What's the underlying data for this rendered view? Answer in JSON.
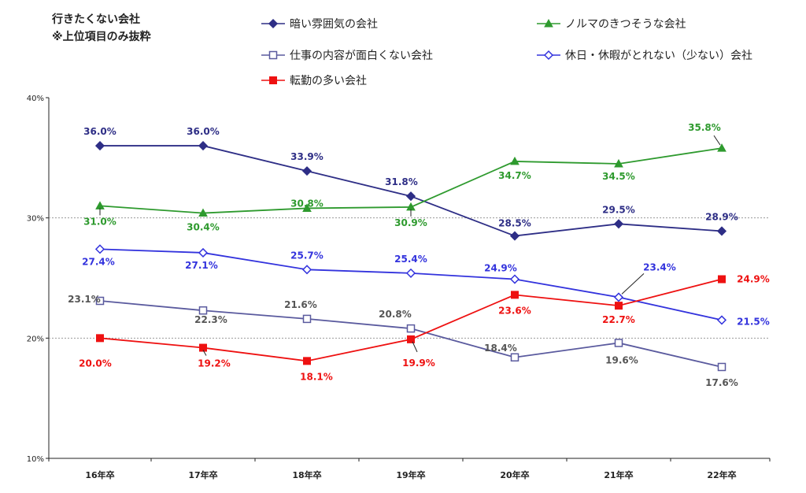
{
  "title_lines": [
    "行きたくない会社",
    "※上位項目のみ抜粋"
  ],
  "chart_data": {
    "type": "line",
    "categories": [
      "16年卒",
      "17年卒",
      "18年卒",
      "19年卒",
      "20年卒",
      "21年卒",
      "22年卒"
    ],
    "ylim": [
      10,
      40
    ],
    "yticks": [
      "10%",
      "20%",
      "30%",
      "40%"
    ],
    "grid": "horizontal dashed at 20% and 30%",
    "legend_position": "top",
    "series": [
      {
        "name": "暗い雰囲気の会社",
        "color": "#2e2e86",
        "marker": "diamond-filled",
        "values": [
          36.0,
          36.0,
          33.9,
          31.8,
          28.5,
          29.5,
          28.9
        ],
        "labels": [
          "36.0%",
          "36.0%",
          "33.9%",
          "31.8%",
          "28.5%",
          "29.5%",
          "28.9%"
        ]
      },
      {
        "name": "ノルマのきつそうな会社",
        "color": "#2e9a2e",
        "marker": "triangle-filled",
        "values": [
          31.0,
          30.4,
          30.8,
          30.9,
          34.7,
          34.5,
          35.8
        ],
        "labels": [
          "31.0%",
          "30.4%",
          "30.8%",
          "30.9%",
          "34.7%",
          "34.5%",
          "35.8%"
        ]
      },
      {
        "name": "仕事の内容が面白くない会社",
        "color": "#5a5a9e",
        "marker": "square-open",
        "values": [
          23.1,
          22.3,
          21.6,
          20.8,
          18.4,
          19.6,
          17.6
        ],
        "labels": [
          "23.1%",
          "22.3%",
          "21.6%",
          "20.8%",
          "18.4%",
          "19.6%",
          "17.6%"
        ]
      },
      {
        "name": "休日・休暇がとれない（少ない）会社",
        "color": "#3333dd",
        "marker": "diamond-open",
        "values": [
          27.4,
          27.1,
          25.7,
          25.4,
          24.9,
          23.4,
          21.5
        ],
        "labels": [
          "27.4%",
          "27.1%",
          "25.7%",
          "25.4%",
          "24.9%",
          "23.4%",
          "21.5%"
        ]
      },
      {
        "name": "転勤の多い会社",
        "color": "#ee1111",
        "marker": "square-filled",
        "values": [
          20.0,
          19.2,
          18.1,
          19.9,
          23.6,
          22.7,
          24.9
        ],
        "labels": [
          "20.0%",
          "19.2%",
          "18.1%",
          "19.9%",
          "23.6%",
          "22.7%",
          "24.9%"
        ]
      }
    ]
  }
}
